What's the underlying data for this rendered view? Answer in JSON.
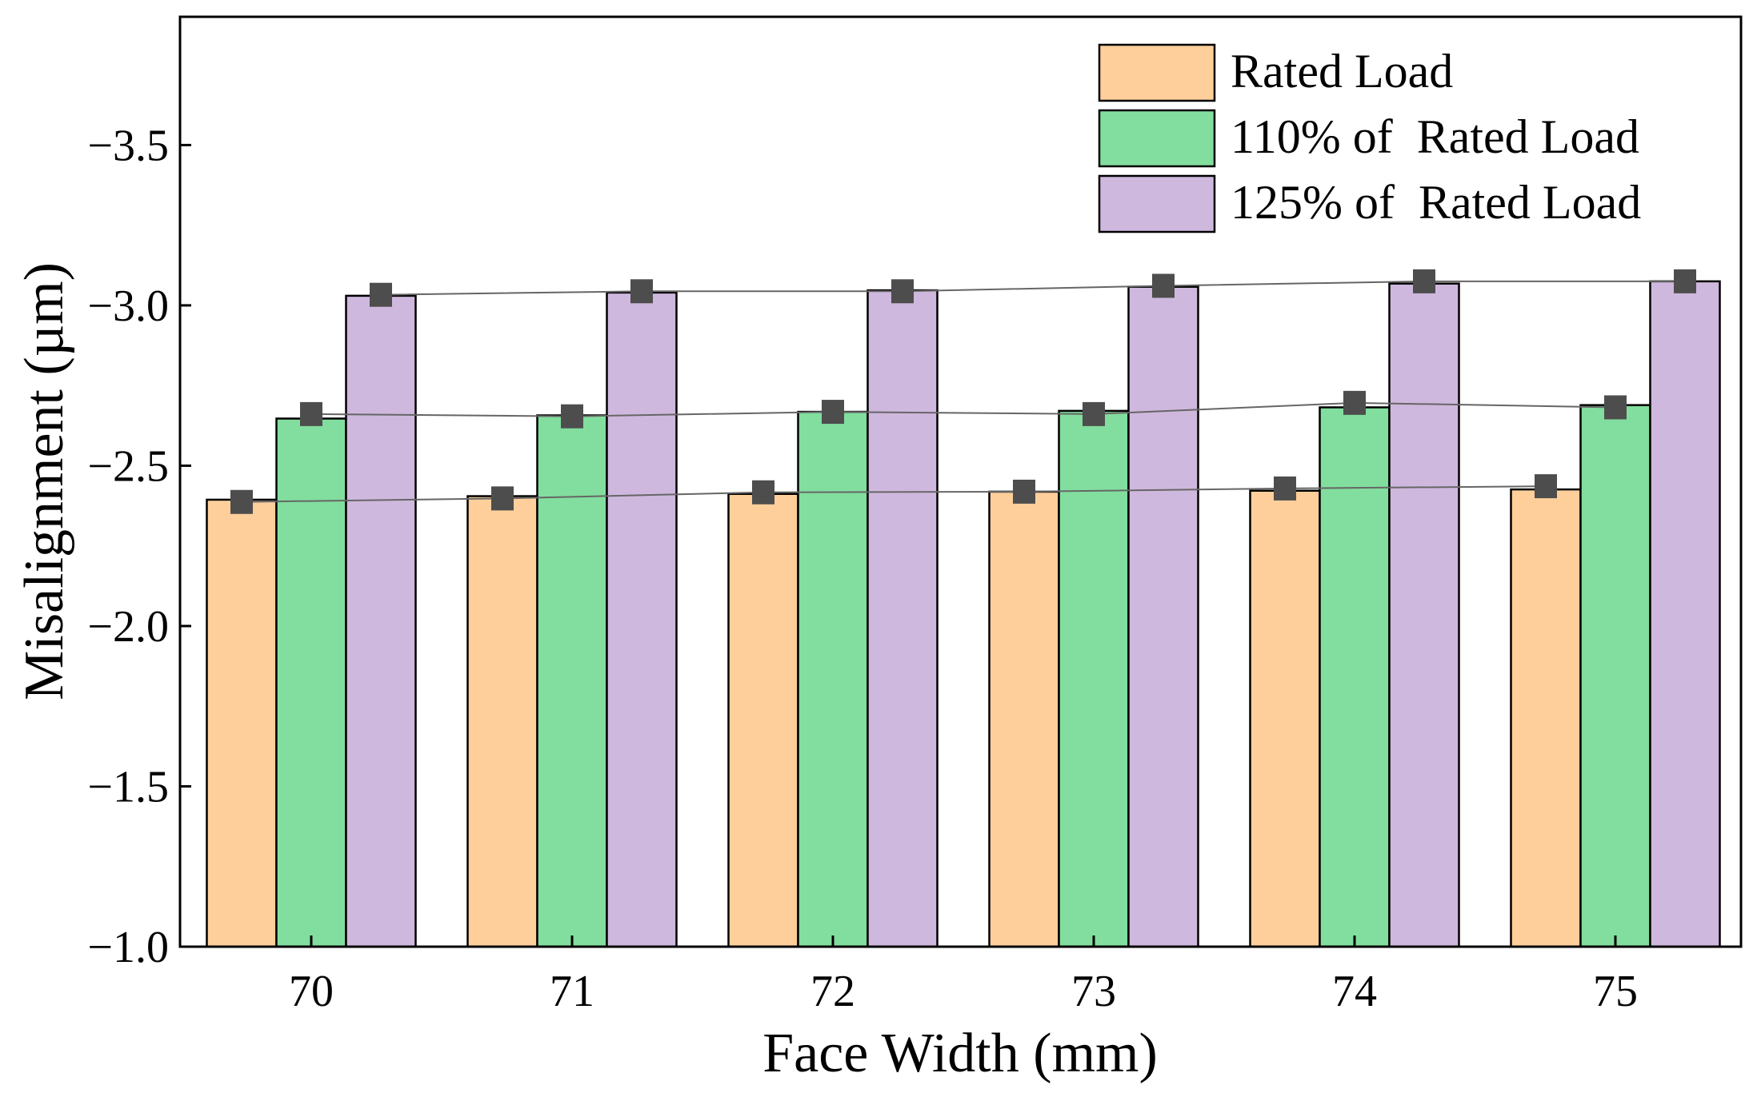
{
  "chart_data": {
    "type": "bar",
    "title": "",
    "xlabel": "Face Width (mm)",
    "ylabel": "Misalignment (µm)",
    "categories": [
      "70",
      "71",
      "72",
      "73",
      "74",
      "75"
    ],
    "ylim": [
      -1.0,
      -3.9
    ],
    "yticks": [
      -1.0,
      -1.5,
      -2.0,
      -2.5,
      -3.0,
      -3.5
    ],
    "ytick_labels": [
      "−1.0",
      "−1.5",
      "−2.0",
      "−2.5",
      "−3.0",
      "−3.5"
    ],
    "grid": false,
    "legend_position": "top-right",
    "series": [
      {
        "name": "Rated Load",
        "color": "#FECF9B",
        "values": [
          -2.394,
          -2.405,
          -2.412,
          -2.419,
          -2.422,
          -2.426
        ],
        "markers": [
          -2.387,
          -2.398,
          -2.417,
          -2.419,
          -2.429,
          -2.436
        ]
      },
      {
        "name": "110% of  Rated Load",
        "color": "#82DE9E",
        "values": [
          -2.647,
          -2.657,
          -2.668,
          -2.671,
          -2.682,
          -2.689
        ],
        "markers": [
          -2.661,
          -2.654,
          -2.668,
          -2.661,
          -2.696,
          -2.682
        ]
      },
      {
        "name": "125% of  Rated Load",
        "color": "#CFB8DE",
        "values": [
          -3.03,
          -3.04,
          -3.047,
          -3.058,
          -3.068,
          -3.075
        ],
        "markers": [
          -3.033,
          -3.044,
          -3.044,
          -3.061,
          -3.075,
          -3.075
        ]
      }
    ],
    "marker_color": "#4D4D4D"
  }
}
